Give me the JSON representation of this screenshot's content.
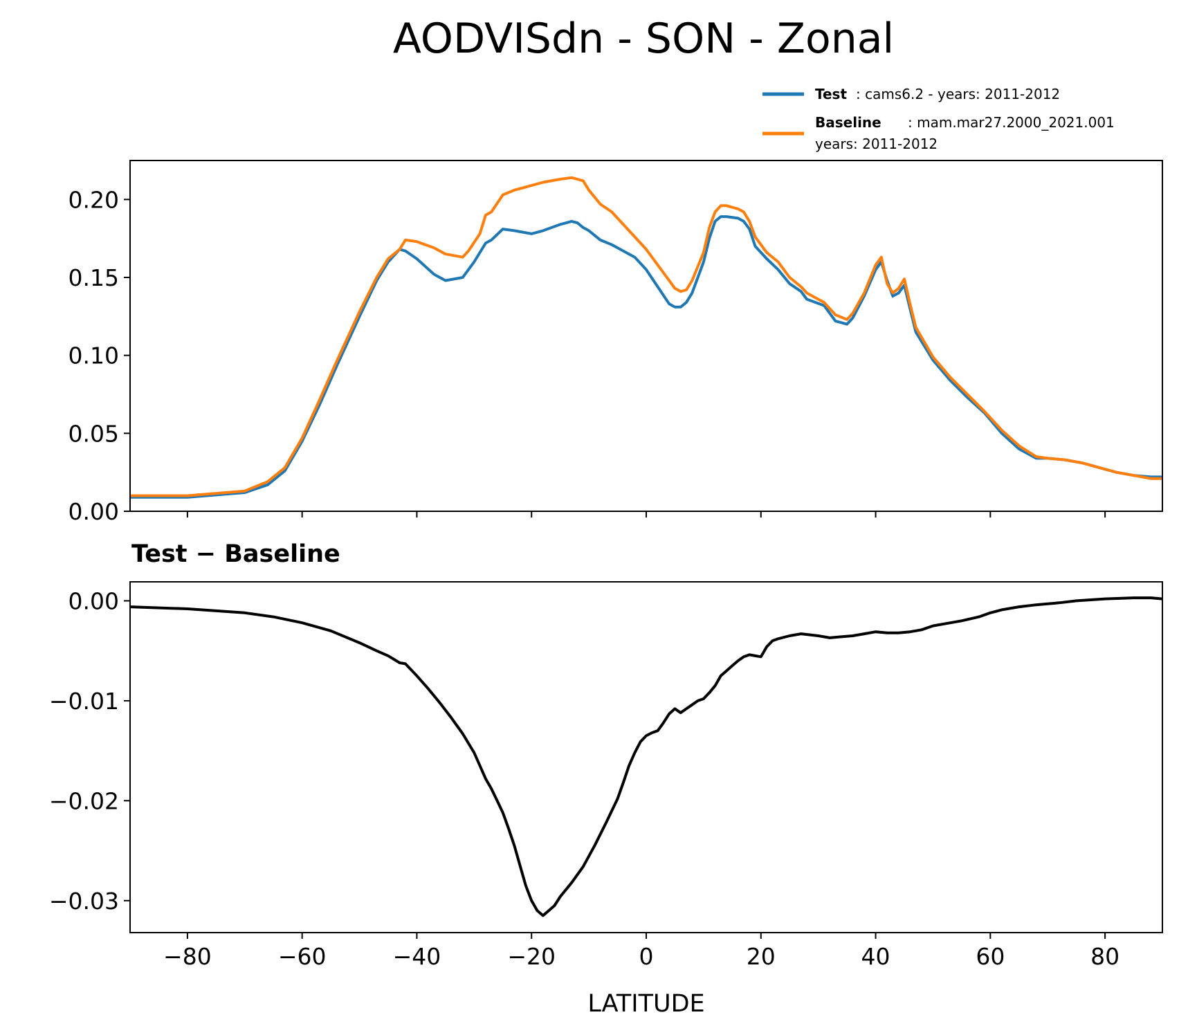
{
  "chart_data": [
    {
      "type": "line",
      "title": "AODVISdn - SON - Zonal",
      "xlabel": "",
      "ylabel": "",
      "xlim": [
        -90,
        90
      ],
      "ylim": [
        0,
        0.225
      ],
      "yticks": [
        "0.00",
        "0.05",
        "0.10",
        "0.15",
        "0.20"
      ],
      "ytick_values": [
        0,
        0.05,
        0.1,
        0.15,
        0.2
      ],
      "xtick_values": [
        -80,
        -60,
        -40,
        -20,
        0,
        20,
        40,
        60,
        80
      ],
      "legend": {
        "placement": "top-right",
        "entries": [
          {
            "label_bold": "Test",
            "label": ": cams6.2 - years: 2011-2012",
            "label2": ""
          },
          {
            "label_bold": "Baseline",
            "label": ": mam.mar27.2000_2021.001",
            "label2": "years: 2011-2012"
          }
        ]
      },
      "series": [
        {
          "name": "Test",
          "color": "#1f77b4",
          "x": [
            -90,
            -80,
            -70,
            -66,
            -63,
            -60,
            -57,
            -54,
            -50,
            -47,
            -45,
            -43,
            -42,
            -40,
            -37,
            -35,
            -32,
            -30,
            -28,
            -27,
            -25,
            -23,
            -20,
            -18,
            -15,
            -13,
            -12,
            -11,
            -10,
            -8,
            -6,
            -4,
            -2,
            0,
            2,
            4,
            5,
            6,
            7,
            8,
            10,
            11,
            12,
            13,
            14,
            16,
            17,
            18,
            19,
            21,
            23,
            25,
            27,
            28,
            31,
            33,
            35,
            36,
            38,
            40,
            41,
            42,
            43,
            44,
            45,
            46,
            47,
            50,
            53,
            56,
            59,
            62,
            65,
            68,
            70,
            73,
            76,
            79,
            82,
            85,
            88,
            90
          ],
          "values": [
            0.009,
            0.009,
            0.012,
            0.017,
            0.026,
            0.045,
            0.068,
            0.093,
            0.125,
            0.148,
            0.16,
            0.168,
            0.167,
            0.162,
            0.152,
            0.148,
            0.15,
            0.16,
            0.172,
            0.174,
            0.181,
            0.18,
            0.178,
            0.18,
            0.184,
            0.186,
            0.185,
            0.182,
            0.18,
            0.174,
            0.171,
            0.167,
            0.163,
            0.155,
            0.144,
            0.133,
            0.131,
            0.131,
            0.134,
            0.14,
            0.16,
            0.175,
            0.186,
            0.189,
            0.189,
            0.188,
            0.186,
            0.181,
            0.17,
            0.162,
            0.155,
            0.146,
            0.141,
            0.136,
            0.132,
            0.122,
            0.12,
            0.124,
            0.138,
            0.155,
            0.16,
            0.148,
            0.138,
            0.14,
            0.145,
            0.13,
            0.115,
            0.097,
            0.084,
            0.073,
            0.063,
            0.05,
            0.04,
            0.034,
            0.034,
            0.033,
            0.031,
            0.028,
            0.025,
            0.023,
            0.022,
            0.022
          ]
        },
        {
          "name": "Baseline",
          "color": "#ff7f0e",
          "x": [
            -90,
            -80,
            -70,
            -66,
            -63,
            -60,
            -57,
            -54,
            -50,
            -47,
            -45,
            -43,
            -42,
            -40,
            -37,
            -35,
            -32,
            -31,
            -29,
            -28,
            -27,
            -25,
            -23,
            -20,
            -18,
            -15,
            -13,
            -12,
            -11,
            -10,
            -8,
            -6,
            -4,
            -2,
            0,
            2,
            4,
            5,
            6,
            7,
            8,
            10,
            11,
            12,
            13,
            14,
            16,
            17,
            18,
            19,
            21,
            23,
            25,
            27,
            28,
            31,
            33,
            35,
            36,
            38,
            40,
            41,
            42,
            43,
            44,
            45,
            46,
            47,
            50,
            53,
            56,
            59,
            62,
            65,
            68,
            70,
            73,
            76,
            79,
            82,
            85,
            88,
            90
          ],
          "values": [
            0.01,
            0.01,
            0.013,
            0.019,
            0.028,
            0.047,
            0.071,
            0.096,
            0.128,
            0.15,
            0.162,
            0.168,
            0.174,
            0.173,
            0.169,
            0.165,
            0.163,
            0.167,
            0.178,
            0.19,
            0.192,
            0.203,
            0.206,
            0.209,
            0.211,
            0.213,
            0.214,
            0.213,
            0.212,
            0.206,
            0.197,
            0.192,
            0.184,
            0.176,
            0.168,
            0.158,
            0.148,
            0.143,
            0.141,
            0.142,
            0.148,
            0.166,
            0.182,
            0.192,
            0.196,
            0.196,
            0.194,
            0.192,
            0.186,
            0.176,
            0.166,
            0.16,
            0.15,
            0.144,
            0.14,
            0.134,
            0.126,
            0.123,
            0.127,
            0.14,
            0.158,
            0.163,
            0.146,
            0.14,
            0.143,
            0.149,
            0.133,
            0.118,
            0.099,
            0.086,
            0.075,
            0.064,
            0.052,
            0.042,
            0.035,
            0.034,
            0.033,
            0.031,
            0.028,
            0.025,
            0.023,
            0.021,
            0.021
          ]
        }
      ]
    },
    {
      "type": "line",
      "title": "Test − Baseline",
      "xlabel": "LATITUDE",
      "ylabel": "",
      "xlim": [
        -90,
        90
      ],
      "ylim": [
        -0.0332,
        0.0019
      ],
      "yticks": [
        "0.00",
        "−0.01",
        "−0.02",
        "−0.03"
      ],
      "ytick_values": [
        0,
        -0.01,
        -0.02,
        -0.03
      ],
      "xticks": [
        "−80",
        "−60",
        "−40",
        "−20",
        "0",
        "20",
        "40",
        "60",
        "80"
      ],
      "xtick_values": [
        -80,
        -60,
        -40,
        -20,
        0,
        20,
        40,
        60,
        80
      ],
      "series": [
        {
          "name": "Test − Baseline",
          "color": "#000000",
          "x": [
            -90,
            -80,
            -70,
            -65,
            -60,
            -55,
            -50,
            -47,
            -45,
            -43,
            -42,
            -40,
            -38,
            -36,
            -34,
            -32,
            -30,
            -28,
            -27,
            -26,
            -25,
            -24,
            -23,
            -22,
            -21,
            -20,
            -19,
            -18,
            -17,
            -16,
            -15,
            -13,
            -11,
            -9,
            -7,
            -6,
            -5,
            -4,
            -3,
            -2,
            -1,
            0,
            1,
            2,
            3,
            4,
            5,
            6,
            7,
            8,
            9,
            10,
            11,
            12,
            13,
            14,
            15,
            16,
            17,
            18,
            19,
            20,
            21,
            22,
            23,
            25,
            27,
            30,
            32,
            34,
            36,
            38,
            40,
            42,
            44,
            46,
            48,
            50,
            52,
            55,
            58,
            60,
            62,
            65,
            68,
            70,
            72,
            75,
            80,
            85,
            88,
            90
          ],
          "values": [
            -0.0006,
            -0.0008,
            -0.0012,
            -0.0016,
            -0.0022,
            -0.003,
            -0.0042,
            -0.005,
            -0.0055,
            -0.0062,
            -0.0063,
            -0.0075,
            -0.0088,
            -0.0102,
            -0.0117,
            -0.0133,
            -0.0152,
            -0.0178,
            -0.0188,
            -0.02,
            -0.0212,
            -0.0228,
            -0.0245,
            -0.0265,
            -0.0285,
            -0.03,
            -0.031,
            -0.0315,
            -0.031,
            -0.0305,
            -0.0296,
            -0.0282,
            -0.0266,
            -0.0245,
            -0.0222,
            -0.021,
            -0.0198,
            -0.0182,
            -0.0165,
            -0.0152,
            -0.0141,
            -0.0135,
            -0.0132,
            -0.013,
            -0.0122,
            -0.0113,
            -0.0108,
            -0.0112,
            -0.0108,
            -0.0104,
            -0.01,
            -0.0098,
            -0.0092,
            -0.0085,
            -0.0075,
            -0.007,
            -0.0065,
            -0.006,
            -0.0056,
            -0.0054,
            -0.0055,
            -0.0056,
            -0.0046,
            -0.004,
            -0.0038,
            -0.0035,
            -0.0033,
            -0.0035,
            -0.0037,
            -0.0036,
            -0.0035,
            -0.0033,
            -0.0031,
            -0.0032,
            -0.0032,
            -0.0031,
            -0.0029,
            -0.0025,
            -0.0023,
            -0.002,
            -0.0016,
            -0.0012,
            -0.0009,
            -0.0006,
            -0.0004,
            -0.0003,
            -0.0002,
            0.0,
            0.0002,
            0.0003,
            0.0003,
            0.0002
          ]
        }
      ]
    }
  ]
}
